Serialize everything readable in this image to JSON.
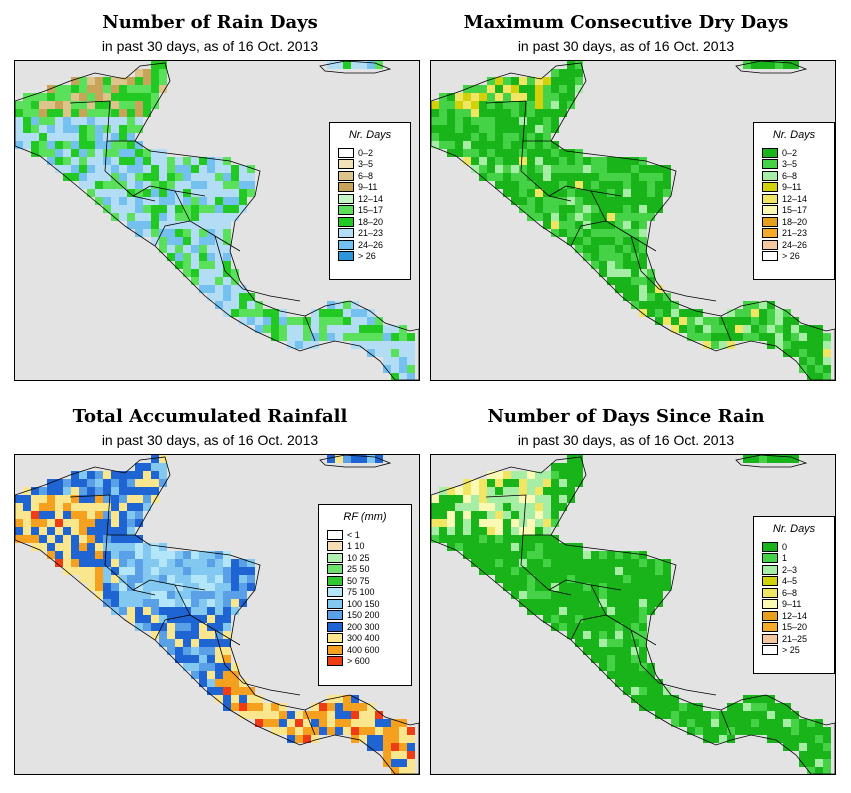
{
  "panels": [
    {
      "title": "Number of Rain Days",
      "subtitle": "in past 30 days, as of  16 Oct. 2013",
      "legend": {
        "title": "Nr. Days",
        "items": [
          {
            "label": "0–2",
            "color": "#ffffff"
          },
          {
            "label": "3–5",
            "color": "#f2e2b8"
          },
          {
            "label": "6–8",
            "color": "#dcc48a"
          },
          {
            "label": "9–11",
            "color": "#c8a45a"
          },
          {
            "label": "12–14",
            "color": "#c6f5c6"
          },
          {
            "label": "15–17",
            "color": "#5ae05a"
          },
          {
            "label": "18–20",
            "color": "#22c922"
          },
          {
            "label": "21–23",
            "color": "#b3dcf5"
          },
          {
            "label": "24–26",
            "color": "#74c0ee"
          },
          {
            "label": "> 26",
            "color": "#2d96dc"
          }
        ]
      }
    },
    {
      "title": "Maximum Consecutive Dry Days",
      "subtitle": "in past 30 days, as of  16 Oct. 2013",
      "legend": {
        "title": "Nr. Days",
        "items": [
          {
            "label": "0–2",
            "color": "#19b419"
          },
          {
            "label": "3–5",
            "color": "#46d246"
          },
          {
            "label": "6–8",
            "color": "#a6eda6"
          },
          {
            "label": "9–11",
            "color": "#d2d20a"
          },
          {
            "label": "12–14",
            "color": "#f0e664"
          },
          {
            "label": "15–17",
            "color": "#fafab4"
          },
          {
            "label": "18–20",
            "color": "#e6a01e"
          },
          {
            "label": "21–23",
            "color": "#f5aa28"
          },
          {
            "label": "24–26",
            "color": "#f5c8a0"
          },
          {
            "label": "> 26",
            "color": "#ffffff"
          }
        ]
      }
    },
    {
      "title": "Total Accumulated Rainfall",
      "subtitle": "in past 30 days, as of  16 Oct. 2013",
      "legend": {
        "title": "RF (mm)",
        "items": [
          {
            "label": "< 1",
            "color": "#ffffff"
          },
          {
            "label": "1  10",
            "color": "#f5deb4"
          },
          {
            "label": "10  25",
            "color": "#b4f0b4"
          },
          {
            "label": "25  50",
            "color": "#6ee06e"
          },
          {
            "label": "50  75",
            "color": "#32c832"
          },
          {
            "label": "75  100",
            "color": "#b4e6fa"
          },
          {
            "label": "100  150",
            "color": "#82c8f0"
          },
          {
            "label": "150  200",
            "color": "#5aa0e6"
          },
          {
            "label": "200  300",
            "color": "#1e64d2"
          },
          {
            "label": "300  400",
            "color": "#fae68c"
          },
          {
            "label": "400  600",
            "color": "#f5a01e"
          },
          {
            "label": "> 600",
            "color": "#f03c14"
          }
        ]
      }
    },
    {
      "title": "Number of Days Since Rain",
      "subtitle": "in past 30 days, as of  16 Oct. 2013",
      "legend": {
        "title": "Nr. Days",
        "items": [
          {
            "label": "0",
            "color": "#19b419"
          },
          {
            "label": "1",
            "color": "#46d246"
          },
          {
            "label": "2–3",
            "color": "#a6eda6"
          },
          {
            "label": "4–5",
            "color": "#d2d20a"
          },
          {
            "label": "6–8",
            "color": "#f0e664"
          },
          {
            "label": "9–11",
            "color": "#fafab4"
          },
          {
            "label": "12–14",
            "color": "#e6a01e"
          },
          {
            "label": "15–20",
            "color": "#f5aa28"
          },
          {
            "label": "21–25",
            "color": "#f5c8a0"
          },
          {
            "label": "> 25",
            "color": "#ffffff"
          }
        ]
      }
    }
  ],
  "colors": {
    "ocean": "#e3e3e3",
    "border": "#000000"
  }
}
